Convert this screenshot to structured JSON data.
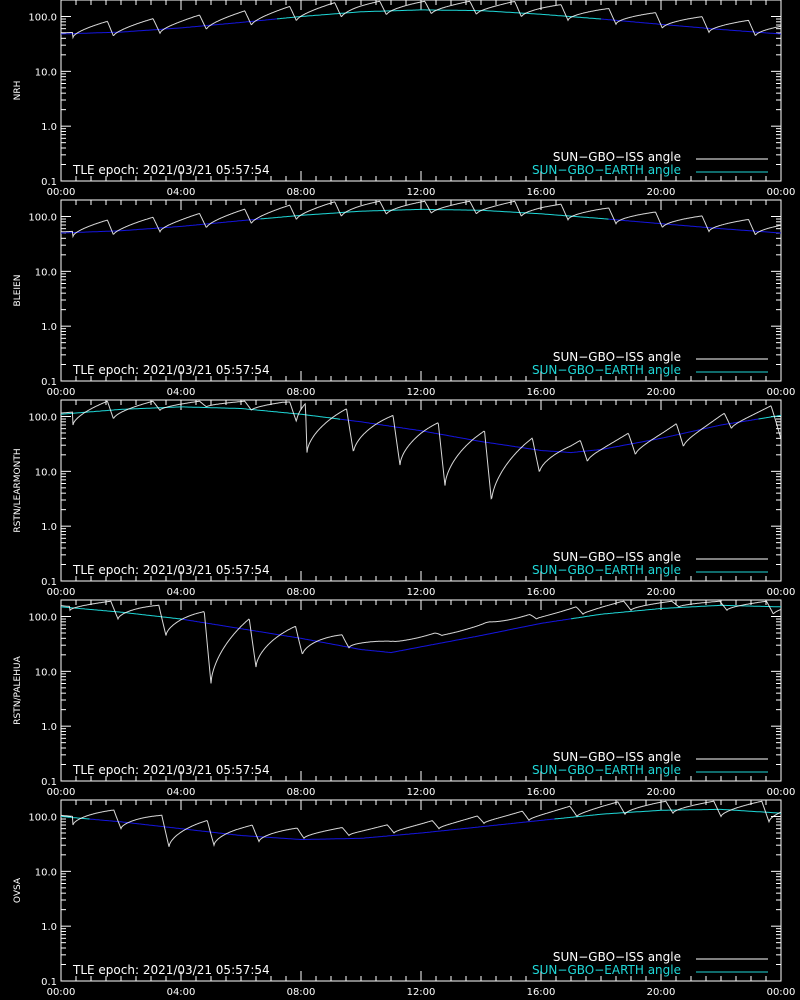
{
  "chart_data": {
    "type": "line",
    "yscale": "log",
    "xlim": [
      "00:00",
      "24:00"
    ],
    "ylim": [
      0.1,
      200
    ],
    "grid": false,
    "legend_position": "bottom-right",
    "x_tick_labels": [
      "00:00",
      "04:00",
      "08:00",
      "12:00",
      "16:00",
      "20:00",
      "00:00"
    ],
    "y_tick_labels": [
      "0.1",
      "1.0",
      "10.0",
      "100.0"
    ],
    "y_tick_values": [
      0.1,
      1,
      10,
      100
    ],
    "annotation": "TLE epoch: 2021/03/21 05:57:54",
    "series_names": [
      "SUN−GBO−ISS angle",
      "SUN−GBO−EARTH angle"
    ],
    "colors": {
      "iss": "#ffffff",
      "earth_low": "#1515e0",
      "earth_high": "#1fd8d8",
      "axis": "#ffffff",
      "background": "#000000"
    },
    "panels": [
      {
        "ylabel": "NRH",
        "earth": {
          "x": [
            0,
            2,
            4,
            6,
            8,
            10,
            12,
            14,
            16,
            18,
            20,
            22,
            24
          ],
          "y": [
            48,
            52,
            62,
            78,
            100,
            122,
            132,
            128,
            110,
            90,
            72,
            58,
            48
          ]
        },
        "iss_peaks_x": [
          0.8,
          2.5,
          4.1,
          5.6,
          7.1,
          8.6,
          10.1,
          11.6,
          13.1,
          14.6,
          16.1,
          17.7,
          19.3,
          20.8,
          22.4,
          23.9
        ],
        "iss_minima": [
          0.4,
          1.75,
          3.3,
          4.85,
          6.35,
          7.85,
          9.35,
          10.85,
          12.35,
          13.85,
          15.35,
          16.9,
          18.5,
          20.05,
          21.6,
          23.15
        ]
      },
      {
        "ylabel": "BLEIEN",
        "earth": {
          "x": [
            0,
            2,
            4,
            6,
            8,
            10,
            12,
            14,
            16,
            18,
            20,
            22,
            24
          ],
          "y": [
            50,
            55,
            66,
            84,
            105,
            125,
            135,
            130,
            112,
            92,
            74,
            60,
            50
          ]
        },
        "iss_peaks_x": [
          0.8,
          2.5,
          4.1,
          5.6,
          7.1,
          8.6,
          10.1,
          11.6,
          13.1,
          14.6,
          16.1,
          17.7,
          19.3,
          20.8,
          22.4,
          23.9
        ],
        "iss_minima": [
          0.4,
          1.75,
          3.3,
          4.85,
          6.35,
          7.85,
          9.35,
          10.85,
          12.35,
          13.85,
          15.35,
          16.9,
          18.5,
          20.05,
          21.6,
          23.15
        ]
      },
      {
        "ylabel": "RSTN/LEARMONTH",
        "earth": {
          "x": [
            0,
            2,
            4,
            6,
            8,
            10,
            12,
            14,
            16,
            17,
            18,
            20,
            22,
            24
          ],
          "y": [
            110,
            135,
            150,
            140,
            110,
            80,
            55,
            35,
            24,
            22,
            25,
            40,
            70,
            105
          ]
        },
        "iss_peaks_x": [
          0.8,
          2.5,
          4.1,
          5.6,
          7.1,
          8.6,
          10.1,
          11.6,
          13.1,
          14.6,
          16.1,
          17.7,
          19.3,
          20.8,
          22.4,
          23.9
        ],
        "iss_minima": [
          0.4,
          1.75,
          3.3,
          4.85,
          6.35,
          7.85,
          8.2,
          9.75,
          11.3,
          12.8,
          14.35,
          15.95,
          17.55,
          19.15,
          20.75,
          22.35
        ],
        "iss_min_values": [
          70,
          90,
          130,
          150,
          130,
          80,
          22,
          22,
          13,
          5.5,
          2.8,
          9.5,
          15,
          20,
          28,
          60
        ]
      },
      {
        "ylabel": "RSTN/PALEHUA",
        "earth": {
          "x": [
            0,
            2,
            4,
            6,
            8,
            10,
            11,
            12,
            14,
            16,
            18,
            20,
            22,
            24
          ],
          "y": [
            150,
            120,
            90,
            60,
            40,
            25,
            22,
            28,
            45,
            75,
            110,
            140,
            160,
            150
          ]
        },
        "iss_peaks_x": [
          0.8,
          2.5,
          4.1,
          5.6,
          7.1,
          8.6,
          10.1,
          11.6,
          13.1,
          14.6,
          16.1,
          17.7,
          19.3,
          20.8,
          22.4,
          23.9
        ],
        "iss_minima": [
          0.3,
          1.9,
          3.5,
          5.0,
          6.5,
          8.05,
          9.6,
          11.15,
          12.7,
          14.3,
          15.85,
          17.4,
          19.0,
          20.6,
          22.2,
          23.75
        ],
        "iss_min_values": [
          130,
          90,
          45,
          6,
          12,
          20,
          27,
          35,
          45,
          80,
          90,
          110,
          130,
          150,
          130,
          110
        ]
      },
      {
        "ylabel": "OVSA",
        "earth": {
          "x": [
            0,
            2,
            4,
            6,
            8,
            10,
            12,
            14,
            16,
            18,
            20,
            22,
            24
          ],
          "y": [
            100,
            80,
            60,
            45,
            38,
            40,
            50,
            65,
            85,
            110,
            130,
            135,
            115
          ]
        },
        "iss_peaks_x": [
          0.8,
          2.5,
          4.1,
          5.6,
          7.1,
          8.6,
          10.1,
          11.6,
          13.1,
          14.6,
          16.1,
          17.7,
          19.3,
          20.8,
          22.4,
          23.9
        ],
        "iss_minima": [
          0.4,
          2.0,
          3.6,
          5.1,
          6.6,
          8.1,
          9.6,
          11.1,
          12.6,
          14.1,
          15.6,
          17.2,
          18.8,
          20.4,
          22.0,
          23.6
        ],
        "iss_min_values": [
          70,
          60,
          28,
          30,
          35,
          40,
          45,
          50,
          60,
          75,
          85,
          100,
          110,
          115,
          100,
          80
        ]
      }
    ]
  }
}
